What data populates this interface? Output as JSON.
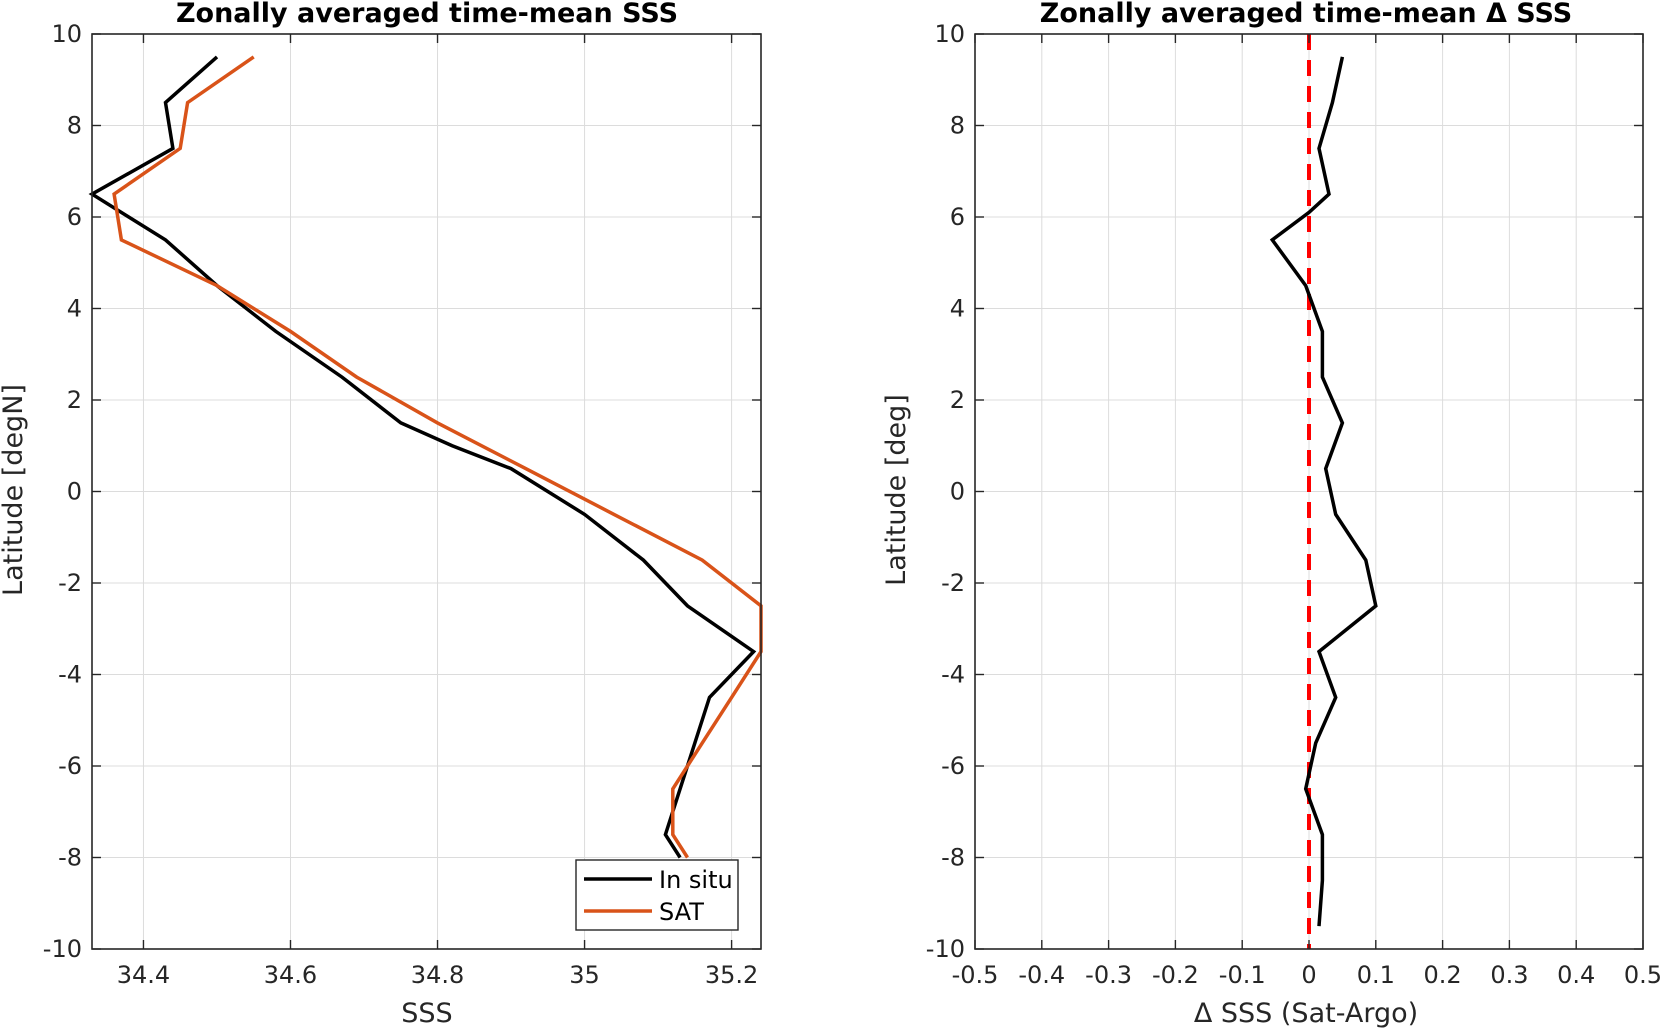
{
  "chart_data": [
    {
      "type": "line",
      "title": "Zonally averaged time-mean SSS",
      "xlabel": "SSS",
      "ylabel": "Latitude [degN]",
      "xlim": [
        34.33,
        35.24
      ],
      "ylim": [
        -10,
        10
      ],
      "xticks": [
        34.4,
        34.6,
        34.8,
        35,
        35.2
      ],
      "xtick_labels": [
        "34.4",
        "34.6",
        "34.8",
        "35",
        "35.2"
      ],
      "yticks": [
        -10,
        -8,
        -6,
        -4,
        -2,
        0,
        2,
        4,
        6,
        8,
        10
      ],
      "ytick_labels": [
        "-10",
        "-8",
        "-6",
        "-4",
        "-2",
        "0",
        "2",
        "4",
        "6",
        "8",
        "10"
      ],
      "grid": true,
      "legend_position": "bottom-right",
      "series": [
        {
          "name": "In situ",
          "color": "#000000",
          "x": [
            34.5,
            34.43,
            34.44,
            34.33,
            34.43,
            34.5,
            34.58,
            34.67,
            34.75,
            34.82,
            34.9,
            35.0,
            35.08,
            35.14,
            35.23,
            35.17,
            35.15,
            35.13,
            35.11,
            35.13
          ],
          "y": [
            9.5,
            8.5,
            7.5,
            6.5,
            5.5,
            4.5,
            3.5,
            2.5,
            1.5,
            1.0,
            0.5,
            -0.5,
            -1.5,
            -2.5,
            -3.5,
            -4.5,
            -5.5,
            -6.5,
            -7.5,
            -8.0
          ]
        },
        {
          "name": "SAT",
          "color": "#D95319",
          "x": [
            34.55,
            34.46,
            34.45,
            34.36,
            34.37,
            34.5,
            34.6,
            34.69,
            34.8,
            34.92,
            35.04,
            35.16,
            35.24,
            35.24,
            35.2,
            35.16,
            35.12,
            35.12,
            35.14
          ],
          "y": [
            9.5,
            8.5,
            7.5,
            6.5,
            5.5,
            4.5,
            3.5,
            2.5,
            1.5,
            0.5,
            -0.5,
            -1.5,
            -2.5,
            -3.5,
            -4.5,
            -5.5,
            -6.5,
            -7.5,
            -8.0
          ]
        }
      ]
    },
    {
      "type": "line",
      "title": "Zonally averaged time-mean Δ SSS",
      "xlabel": "Δ SSS (Sat-Argo)",
      "ylabel": "Latitude [deg]",
      "xlim": [
        -0.5,
        0.5
      ],
      "ylim": [
        -10,
        10
      ],
      "xticks": [
        -0.5,
        -0.4,
        -0.3,
        -0.2,
        -0.1,
        0,
        0.1,
        0.2,
        0.3,
        0.4,
        0.5
      ],
      "xtick_labels": [
        "-0.5",
        "-0.4",
        "-0.3",
        "-0.2",
        "-0.1",
        "0",
        "0.1",
        "0.2",
        "0.3",
        "0.4",
        "0.5"
      ],
      "yticks": [
        -10,
        -8,
        -6,
        -4,
        -2,
        0,
        2,
        4,
        6,
        8,
        10
      ],
      "ytick_labels": [
        "-10",
        "-8",
        "-6",
        "-4",
        "-2",
        "0",
        "2",
        "4",
        "6",
        "8",
        "10"
      ],
      "grid": true,
      "reference_line": {
        "x": 0,
        "color": "#FF0000",
        "style": "dashed"
      },
      "series": [
        {
          "name": "",
          "color": "#000000",
          "x": [
            0.05,
            0.035,
            0.015,
            0.03,
            0.0,
            -0.055,
            -0.005,
            0.02,
            0.02,
            0.05,
            0.025,
            0.04,
            0.085,
            0.1,
            0.015,
            0.04,
            0.01,
            -0.005,
            0.02,
            0.02,
            0.015
          ],
          "y": [
            9.5,
            8.5,
            7.5,
            6.5,
            6.1,
            5.5,
            4.5,
            3.5,
            2.5,
            1.5,
            0.5,
            -0.5,
            -1.5,
            -2.5,
            -3.5,
            -4.5,
            -5.5,
            -6.5,
            -7.5,
            -8.5,
            -9.5
          ]
        }
      ]
    }
  ]
}
